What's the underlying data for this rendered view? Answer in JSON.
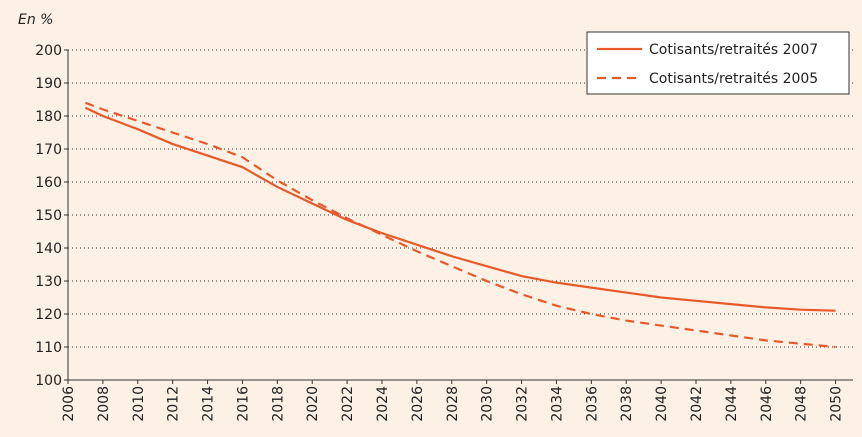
{
  "chart_data": {
    "type": "line",
    "ylabel": "En %",
    "x": [
      2007,
      2008,
      2010,
      2012,
      2014,
      2016,
      2018,
      2020,
      2022,
      2024,
      2026,
      2028,
      2030,
      2032,
      2034,
      2036,
      2038,
      2040,
      2042,
      2044,
      2046,
      2048,
      2050
    ],
    "series": [
      {
        "name": "Cotisants/retraités 2007",
        "color": "#e8592a",
        "dashed": false,
        "values": [
          182.5,
          180,
          176,
          171.5,
          168,
          164.5,
          158.5,
          153.5,
          148.5,
          144.5,
          141,
          137.5,
          134.5,
          131.5,
          129.5,
          128,
          126.5,
          125,
          124,
          123,
          122,
          121.3,
          121
        ]
      },
      {
        "name": "Cotisants/retraités 2005",
        "color": "#e8592a",
        "dashed": true,
        "values": [
          184,
          182,
          178.5,
          175,
          171.5,
          167.5,
          160.5,
          154.5,
          149,
          144,
          139,
          134.5,
          130,
          126,
          122.5,
          120,
          118,
          116.5,
          115,
          113.5,
          112,
          111,
          110
        ]
      }
    ],
    "xlim": [
      2006,
      2051
    ],
    "xticks": [
      2006,
      2008,
      2010,
      2012,
      2014,
      2016,
      2018,
      2020,
      2022,
      2024,
      2026,
      2028,
      2030,
      2032,
      2034,
      2036,
      2038,
      2040,
      2042,
      2044,
      2046,
      2048,
      2050
    ],
    "ylim": [
      100,
      200
    ],
    "yticks": [
      100,
      110,
      120,
      130,
      140,
      150,
      160,
      170,
      180,
      190,
      200
    ],
    "grid": true,
    "legend": "top-right"
  }
}
